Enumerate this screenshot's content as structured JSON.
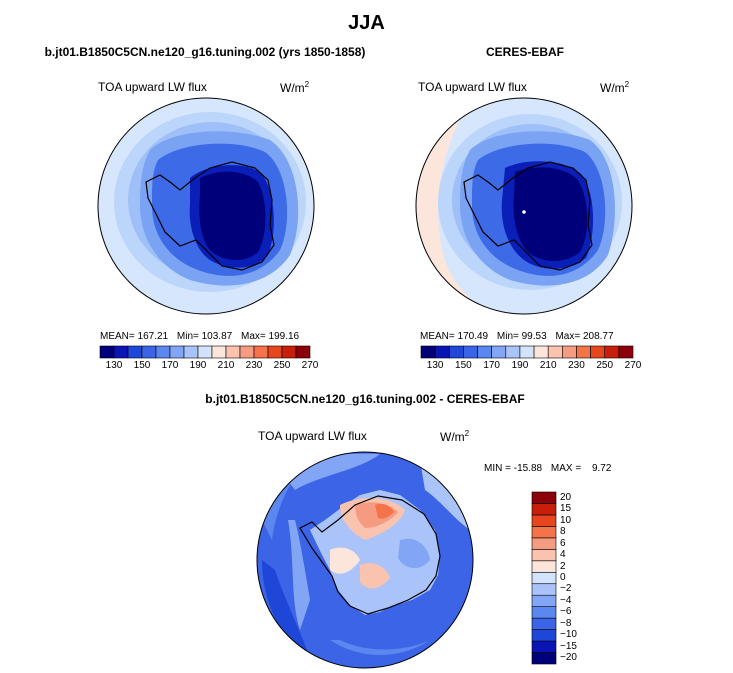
{
  "title": "JJA",
  "chart_data": [
    {
      "type": "heatmap",
      "projection": "polar-stereographic-south",
      "subtitle": "b.jt01.B1850C5CN.ne120_g16.tuning.002 (yrs 1850-1858)",
      "plot_title": "TOA upward LW flux",
      "units_base": "W/m",
      "units_exp": "2",
      "stats": {
        "mean_label": "MEAN=",
        "mean": "167.21",
        "min_label": "Min=",
        "min": "103.87",
        "max_label": "Max=",
        "max": "199.16"
      },
      "colorbar": {
        "orientation": "horizontal",
        "colors": [
          "#00007a",
          "#0a14b4",
          "#1e46d7",
          "#3c64e6",
          "#5a87f0",
          "#82a5f5",
          "#aac4fa",
          "#d2e3fc",
          "#fce6dc",
          "#fac3af",
          "#f59b82",
          "#f5734b",
          "#e6461e",
          "#c81e0a",
          "#8c000a"
        ],
        "tick_labels": [
          "130",
          "150",
          "170",
          "190",
          "210",
          "230",
          "250",
          "270"
        ]
      }
    },
    {
      "type": "heatmap",
      "projection": "polar-stereographic-south",
      "subtitle": "CERES-EBAF",
      "plot_title": "TOA upward LW flux",
      "units_base": "W/m",
      "units_exp": "2",
      "stats": {
        "mean_label": "MEAN=",
        "mean": "170.49",
        "min_label": "Min=",
        "min": "99.53",
        "max_label": "Max=",
        "max": "208.77"
      },
      "colorbar": {
        "orientation": "horizontal",
        "colors": [
          "#00007a",
          "#0a14b4",
          "#1e46d7",
          "#3c64e6",
          "#5a87f0",
          "#82a5f5",
          "#aac4fa",
          "#d2e3fc",
          "#fce6dc",
          "#fac3af",
          "#f59b82",
          "#f5734b",
          "#e6461e",
          "#c81e0a",
          "#8c000a"
        ],
        "tick_labels": [
          "130",
          "150",
          "170",
          "190",
          "210",
          "230",
          "250",
          "270"
        ]
      }
    },
    {
      "type": "heatmap",
      "projection": "polar-stereographic-south",
      "subtitle": "b.jt01.B1850C5CN.ne120_g16.tuning.002 - CERES-EBAF",
      "plot_title": "TOA upward LW flux",
      "units_base": "W/m",
      "units_exp": "2",
      "stats": {
        "min_label": "MIN =",
        "min": "-15.88",
        "max_label": "MAX =",
        "max": "9.72"
      },
      "colorbar": {
        "orientation": "vertical",
        "colors": [
          "#00007a",
          "#0a14b4",
          "#1e46d7",
          "#3c64e6",
          "#5a87f0",
          "#82a5f5",
          "#aac4fa",
          "#d2e3fc",
          "#fce6dc",
          "#fac3af",
          "#f59b82",
          "#f5734b",
          "#e6461e",
          "#c81e0a",
          "#8c000a"
        ],
        "tick_labels": [
          "20",
          "15",
          "10",
          "8",
          "6",
          "4",
          "2",
          "0",
          "−2",
          "−4",
          "−6",
          "−8",
          "−10",
          "−15",
          "−20"
        ]
      }
    }
  ]
}
